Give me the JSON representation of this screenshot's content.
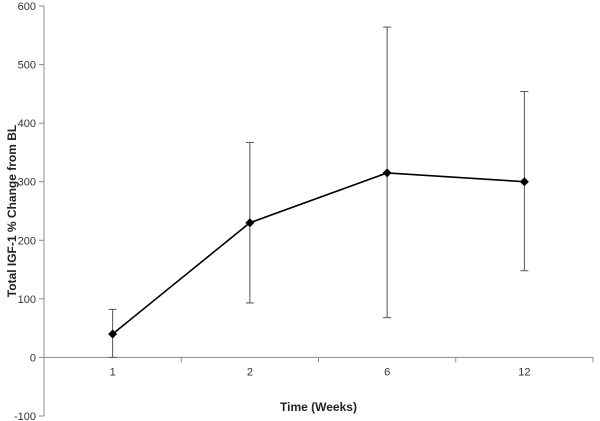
{
  "chart_data": {
    "type": "line",
    "title": "",
    "xlabel": "Time (Weeks)",
    "ylabel": "Total IGF-1 % Change from BL",
    "categories": [
      "1",
      "2",
      "6",
      "12"
    ],
    "ylim": [
      -100,
      600
    ],
    "yticks": [
      "-100",
      "0",
      "100",
      "200",
      "300",
      "400",
      "500",
      "600"
    ],
    "grid": false,
    "legend": "none",
    "series": [
      {
        "values": [
          40,
          230,
          315,
          300
        ],
        "error_low": [
          0,
          93,
          68,
          148
        ],
        "error_high": [
          82,
          367,
          564,
          454
        ],
        "color": "#000000",
        "marker": "diamond"
      }
    ]
  }
}
